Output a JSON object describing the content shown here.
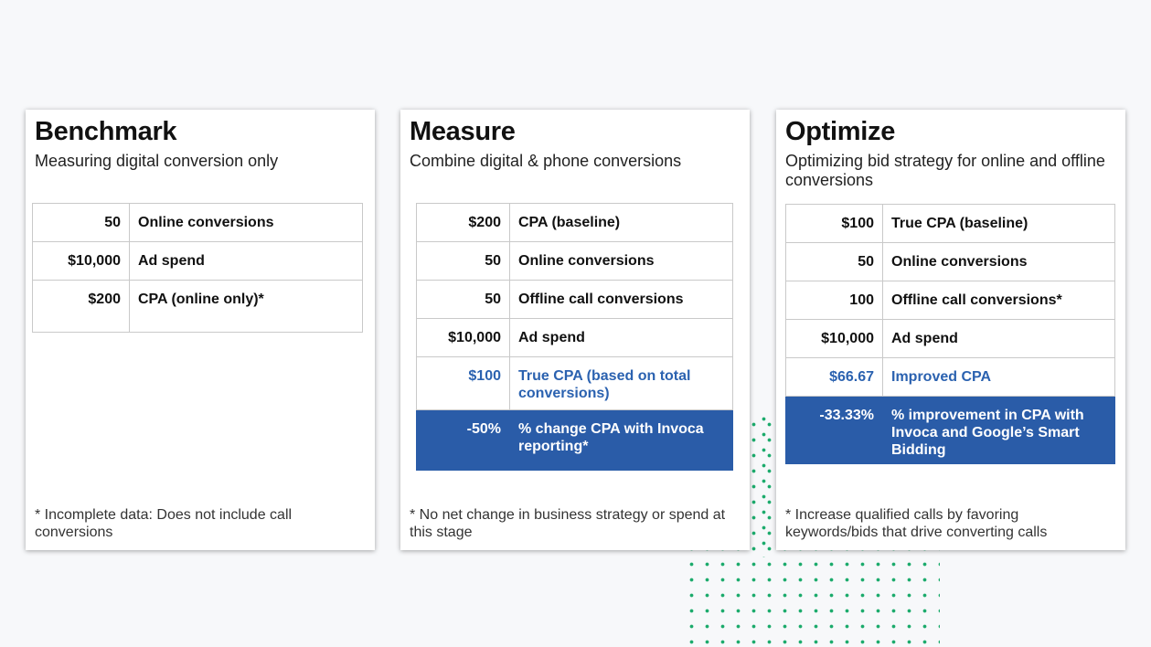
{
  "cards": [
    {
      "title": "Benchmark",
      "subtitle": "Measuring digital conversion only",
      "rows": [
        {
          "value": "50",
          "label": "Online conversions"
        },
        {
          "value": "$10,000",
          "label": "Ad spend"
        },
        {
          "value": "$200",
          "label": "CPA (online only)*"
        }
      ],
      "footnote": "* Incomplete data: Does not include call conversions"
    },
    {
      "title": "Measure",
      "subtitle": "Combine digital & phone conversions",
      "rows": [
        {
          "value": "$200",
          "label": "CPA (baseline)"
        },
        {
          "value": "50",
          "label": "Online conversions"
        },
        {
          "value": "50",
          "label": "Offline call conversions"
        },
        {
          "value": "$10,000",
          "label": "Ad spend"
        },
        {
          "value": "$100",
          "label": "True CPA (based on total conversions)"
        },
        {
          "value": "-50%",
          "label": "% change CPA with Invoca reporting*"
        }
      ],
      "footnote": "* No net change in business strategy or spend at this stage"
    },
    {
      "title": "Optimize",
      "subtitle": "Optimizing bid strategy for online and offline conversions",
      "rows": [
        {
          "value": "$100",
          "label": "True CPA (baseline)"
        },
        {
          "value": "50",
          "label": "Online conversions"
        },
        {
          "value": "100",
          "label": "Offline call conversions*"
        },
        {
          "value": "$10,000",
          "label": "Ad spend"
        },
        {
          "value": "$66.67",
          "label": "Improved CPA"
        },
        {
          "value": "-33.33%",
          "label": "% improvement in CPA with Invoca and Google’s Smart Bidding"
        }
      ],
      "footnote": "* Increase qualified calls by favoring keywords/bids that drive converting calls"
    }
  ],
  "colors": {
    "highlight_bg": "#2a5ca8",
    "accent_text": "#2b62b0",
    "dots": "#1aaa6b"
  }
}
